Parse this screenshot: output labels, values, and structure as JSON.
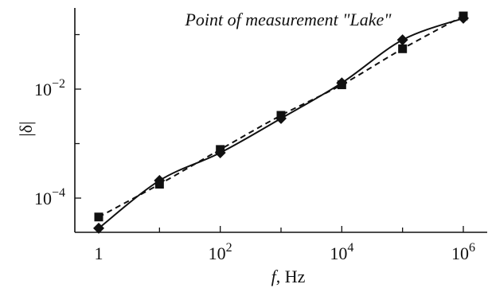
{
  "chart_data": {
    "type": "line",
    "title": "Point of measurement \"Lake\"",
    "xlabel": "f, Hz",
    "ylabel": "|δ|",
    "x_scale": "log",
    "y_scale": "log",
    "xlim": [
      0.5,
      2000000
    ],
    "ylim": [
      2.5e-05,
      0.3
    ],
    "x_ticks": [
      {
        "value": 1,
        "base": "1",
        "exp": ""
      },
      {
        "value": 100,
        "base": "10",
        "exp": "2"
      },
      {
        "value": 10000,
        "base": "10",
        "exp": "4"
      },
      {
        "value": 1000000,
        "base": "10",
        "exp": "6"
      }
    ],
    "x_minor_ticks": [
      10,
      1000,
      100000
    ],
    "y_ticks": [
      {
        "value": 0.0001,
        "base": "10",
        "exp": "−4"
      },
      {
        "value": 0.01,
        "base": "10",
        "exp": "−2"
      }
    ],
    "y_minor_ticks": [
      0.001,
      0.1
    ],
    "series": [
      {
        "marker": "diamond",
        "line": "solid",
        "color": "#111111",
        "x": [
          1,
          10,
          100,
          1000,
          10000,
          100000,
          1000000
        ],
        "y": [
          2.8e-05,
          0.00021,
          0.00068,
          0.0029,
          0.013,
          0.08,
          0.2
        ]
      },
      {
        "marker": "square",
        "line": "dashed",
        "color": "#111111",
        "x": [
          1,
          10,
          100,
          1000,
          10000,
          100000,
          1000000
        ],
        "y": [
          4.5e-05,
          0.00018,
          0.00078,
          0.0033,
          0.012,
          0.055,
          0.22
        ]
      }
    ]
  }
}
